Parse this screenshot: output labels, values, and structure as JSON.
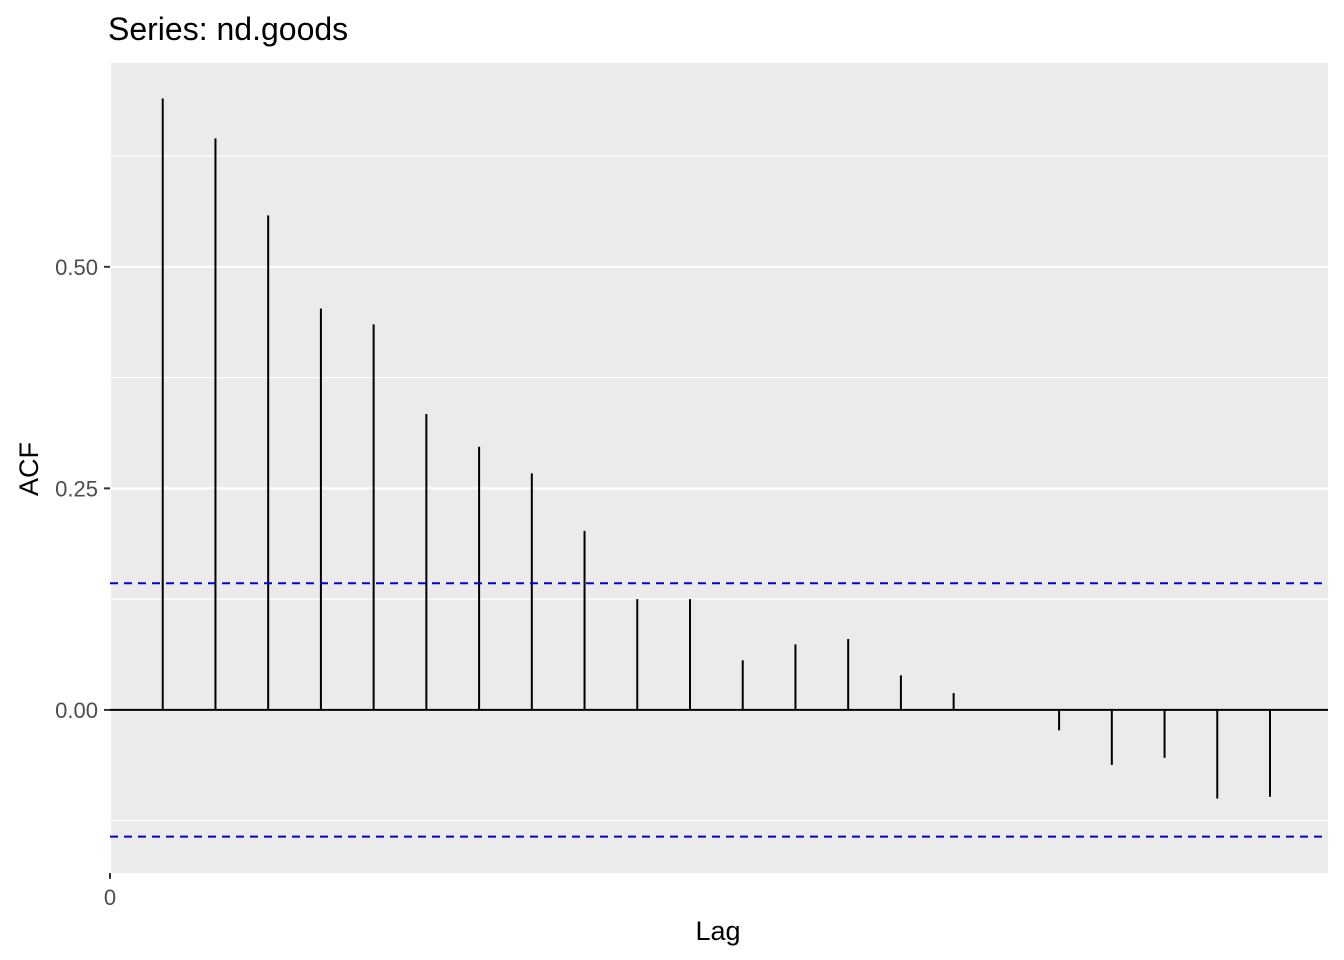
{
  "chart_data": {
    "type": "bar",
    "title": "Series: nd.goods",
    "xlabel": "Lag",
    "ylabel": "ACF",
    "x": [
      1,
      2,
      3,
      4,
      5,
      6,
      7,
      8,
      9,
      10,
      11,
      12,
      13,
      14,
      15,
      16,
      17,
      18,
      19,
      20,
      21,
      22
    ],
    "values": [
      0.69,
      0.645,
      0.558,
      0.453,
      0.435,
      0.334,
      0.297,
      0.267,
      0.202,
      0.125,
      0.125,
      0.056,
      0.074,
      0.08,
      0.039,
      0.019,
      0.0,
      -0.023,
      -0.062,
      -0.054,
      -0.1,
      -0.098
    ],
    "x_ticks": [
      {
        "value": 0,
        "label": "0"
      }
    ],
    "y_ticks": [
      {
        "value": 0.0,
        "label": "0.00"
      },
      {
        "value": 0.25,
        "label": "0.25"
      },
      {
        "value": 0.5,
        "label": "0.50"
      }
    ],
    "y_minor_ticks": [
      0.125,
      0.375,
      0.625,
      -0.125
    ],
    "xlim": [
      0,
      23.1
    ],
    "ylim": [
      -0.184,
      0.73
    ],
    "confidence_bounds": [
      0.143,
      -0.143
    ],
    "grid": true,
    "colors": {
      "panel": "#ebebeb",
      "grid": "#ffffff",
      "bar": "#000000",
      "ci_line": "#0000cc",
      "tick_text": "#4d4d4d"
    }
  }
}
